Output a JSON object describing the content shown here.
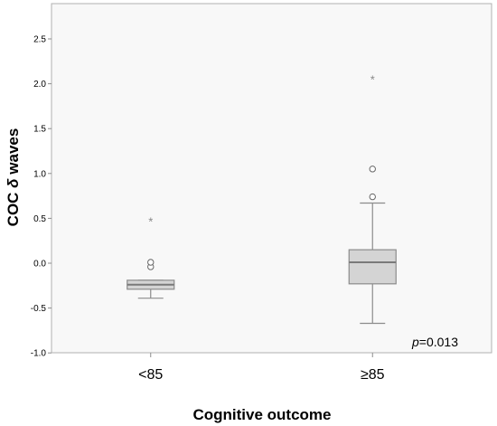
{
  "chart_data": {
    "type": "boxplot",
    "xlabel": "Cognitive outcome",
    "ylabel_main": "COC ",
    "ylabel_delta": "δ",
    "ylabel_rest": " waves",
    "ylim": [
      -1.0,
      2.75
    ],
    "yticks": [
      -1.0,
      -0.5,
      0.0,
      0.5,
      1.0,
      1.5,
      2.0,
      2.5
    ],
    "ytick_labels": [
      "-1.0",
      "-0.5",
      "0.0",
      "0.5",
      "1.0",
      "1.5",
      "2.0",
      "2.5"
    ],
    "categories": [
      "<85",
      "≥85"
    ],
    "boxes": [
      {
        "category": "<85",
        "whisker_low": -0.39,
        "q1": -0.29,
        "median": -0.24,
        "q3": -0.19,
        "whisker_high": -0.19,
        "outliers": [
          -0.04,
          0.01
        ],
        "extremes": [
          0.48
        ]
      },
      {
        "category": "≥85",
        "whisker_low": -0.67,
        "q1": -0.23,
        "median": 0.01,
        "q3": 0.15,
        "whisker_high": 0.67,
        "outliers": [
          0.74,
          1.05
        ],
        "extremes": [
          2.06
        ]
      }
    ],
    "annotation_italic": "p",
    "annotation_rest": "=0.013",
    "colors": {
      "box_fill": "#d4d4d4",
      "box_stroke": "#8c8c8c",
      "plot_bg": "#f8f8f8",
      "axis": "#b0b0b0"
    }
  }
}
